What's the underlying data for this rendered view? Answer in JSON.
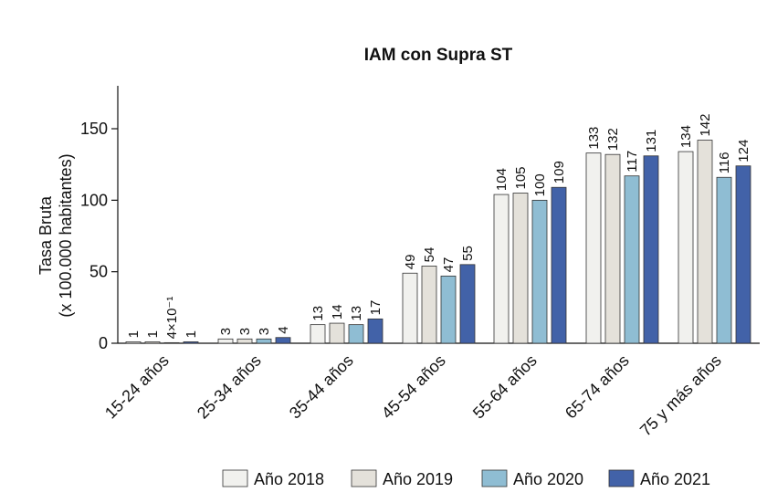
{
  "chart_data": {
    "type": "bar",
    "title": "IAM con Supra ST",
    "ylabel_line1": "Tasa Bruta",
    "ylabel_line2": "(x 100.000 habitantes)",
    "xlabel": "",
    "ylim": [
      0,
      180
    ],
    "yticks": [
      0,
      50,
      100,
      150
    ],
    "categories": [
      "15-24 años",
      "25-34 años",
      "35-44 años",
      "45-54 años",
      "55-64 años",
      "65-74 años",
      "75 y más años"
    ],
    "series": [
      {
        "name": "Año 2018",
        "color": "#f1f1ee",
        "values": [
          1,
          3,
          13,
          49,
          104,
          133,
          134
        ],
        "labels": [
          "1",
          "3",
          "13",
          "49",
          "104",
          "133",
          "134"
        ]
      },
      {
        "name": "Año 2019",
        "color": "#e4e1da",
        "values": [
          1,
          3,
          14,
          54,
          105,
          132,
          142
        ],
        "labels": [
          "1",
          "3",
          "14",
          "54",
          "105",
          "132",
          "142"
        ]
      },
      {
        "name": "Año 2020",
        "color": "#8fbdd3",
        "values": [
          0.4,
          3,
          13,
          47,
          100,
          117,
          116
        ],
        "labels": [
          "4×10⁻¹",
          "3",
          "13",
          "47",
          "100",
          "117",
          "116"
        ]
      },
      {
        "name": "Año 2021",
        "color": "#4262a8",
        "values": [
          1,
          4,
          17,
          55,
          109,
          131,
          124
        ],
        "labels": [
          "1",
          "4",
          "17",
          "55",
          "109",
          "131",
          "124"
        ]
      }
    ],
    "grid": false,
    "legend_position": "bottom-right"
  }
}
